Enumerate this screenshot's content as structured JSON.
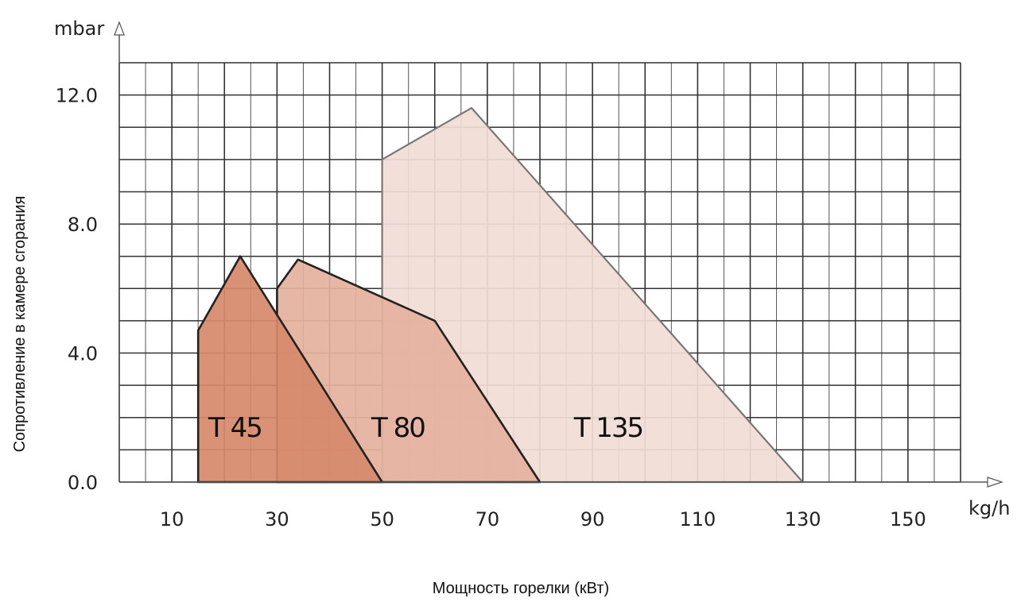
{
  "chart_data": {
    "type": "area",
    "x_unit": "kg/h",
    "y_unit": "mbar",
    "xlabel": "Мощность горелки (кВт)",
    "ylabel": "Сопротивление в камере сгорания",
    "x_ticks": [
      10,
      30,
      50,
      70,
      90,
      110,
      130,
      150
    ],
    "y_ticks": [
      "0.0",
      "4.0",
      "8.0",
      "12.0"
    ],
    "xlim": [
      0,
      160
    ],
    "ylim": [
      0,
      13
    ],
    "grid": true,
    "series": [
      {
        "name": "T 135",
        "color": "#f1ddd5",
        "points": [
          [
            50,
            0
          ],
          [
            50,
            10
          ],
          [
            67,
            11.6
          ],
          [
            130,
            0
          ]
        ]
      },
      {
        "name": "T 80",
        "color": "#e5b19e",
        "points": [
          [
            30,
            0
          ],
          [
            30,
            6
          ],
          [
            34,
            6.9
          ],
          [
            60,
            5
          ],
          [
            80,
            0
          ]
        ]
      },
      {
        "name": "T 45",
        "color": "#d6896a",
        "points": [
          [
            15,
            0
          ],
          [
            15,
            4.7
          ],
          [
            23,
            7
          ],
          [
            50,
            0
          ]
        ]
      }
    ]
  }
}
